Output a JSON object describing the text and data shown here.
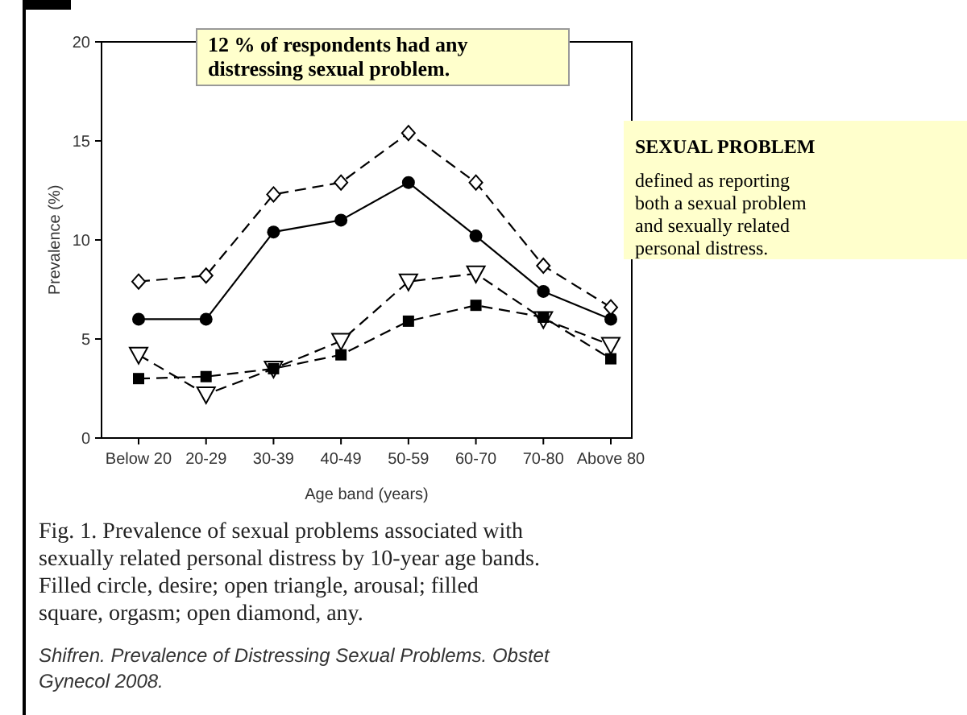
{
  "chart_data": {
    "type": "line",
    "xlabel": "Age band (years)",
    "ylabel": "Prevalence (%)",
    "categories": [
      "Below 20",
      "20-29",
      "30-39",
      "40-49",
      "50-59",
      "60-70",
      "70-80",
      "Above 80"
    ],
    "ylim": [
      0,
      20
    ],
    "yticks": [
      0,
      5,
      10,
      15,
      20
    ],
    "grid": false,
    "series": [
      {
        "color": "#000000",
        "marker": "circle",
        "line_style": "solid",
        "values": [
          6,
          6,
          10.4,
          11,
          12.9,
          10.2,
          7.4,
          6.0
        ]
      },
      {
        "color": "#000000",
        "marker": "triangle",
        "line_style": "dashed",
        "values": [
          4.2,
          2.2,
          3.5,
          4.9,
          7.9,
          8.3,
          6.0,
          4.7
        ]
      },
      {
        "color": "#000000",
        "marker": "square",
        "line_style": "dashed",
        "values": [
          3.0,
          3.1,
          3.5,
          4.2,
          5.9,
          6.7,
          6.1,
          4.0
        ]
      },
      {
        "color": "#000000",
        "marker": "diamond",
        "line_style": "dashed",
        "values": [
          7.9,
          8.2,
          12.3,
          12.9,
          15.4,
          12.9,
          8.7,
          6.6
        ]
      }
    ],
    "annotations": [
      "12 % of respondents  had any distressing sexual problem.",
      "SEXUAL PROBLEM",
      "defined as reporting both a sexual problem and sexually related personal distress.",
      "Fig. 1. Prevalence of sexual problems associated with sexually related personal distress by 10-year age bands. Filled circle, desire; open triangle, arousal; filled square, orgasm; open diamond, any.",
      "Shifren. Prevalence of Distressing Sexual Problems. Obstet Gynecol 2008."
    ]
  }
}
